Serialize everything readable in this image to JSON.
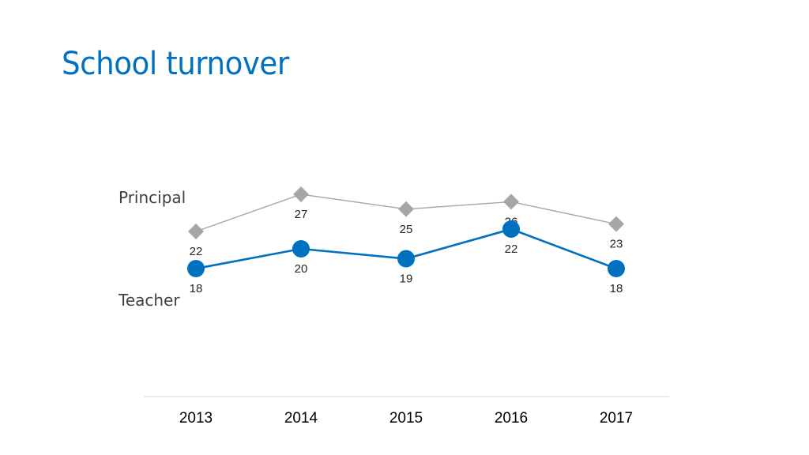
{
  "title": "School turnover",
  "chart_data": {
    "type": "line",
    "title": "School turnover",
    "x": [
      "2013",
      "2014",
      "2015",
      "2016",
      "2017"
    ],
    "series": [
      {
        "name": "Principal",
        "values": [
          22,
          27,
          25,
          26,
          23
        ],
        "color": "#a6a6a6",
        "marker": "diamond"
      },
      {
        "name": "Teacher",
        "values": [
          18,
          20,
          19,
          22,
          18
        ],
        "color": "#0070c0",
        "marker": "circle"
      }
    ],
    "xlabel": "",
    "ylabel": "",
    "y_axis_visible": false,
    "grid": false,
    "legend": "series labels on left"
  }
}
